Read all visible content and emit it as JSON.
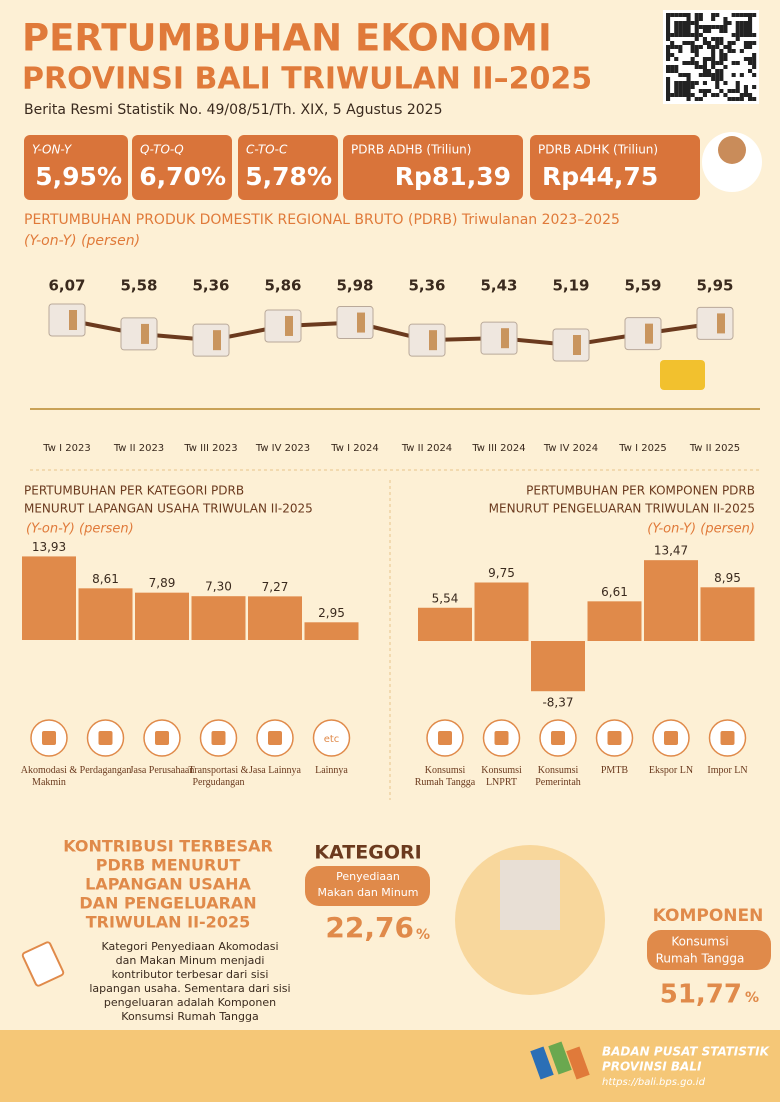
{
  "header": {
    "title_line1": "PERTUMBUHAN EKONOMI",
    "title_line2": "PROVINSI BALI TRIWULAN II–2025",
    "subtitle": "Berita Resmi Statistik No. 49/08/51/Th. XIX, 5 Agustus 2025"
  },
  "indicators": [
    {
      "label": "Y-ON-Y",
      "value": "5,95%"
    },
    {
      "label": "Q-TO-Q",
      "value": "6,70%"
    },
    {
      "label": "C-TO-C",
      "value": "5,78%"
    },
    {
      "label": "PDRB ADHB (Triliun)",
      "value": "Rp81,39"
    },
    {
      "label": "PDRB ADHK (Triliun)",
      "value": "Rp44,75"
    }
  ],
  "chart_data": [
    {
      "type": "line",
      "title": "PERTUMBUHAN PRODUK DOMESTIK REGIONAL BRUTO (PDRB) Triwulanan 2023–2025",
      "subtitle": "(Y-on-Y) (persen)",
      "categories": [
        "Tw I 2023",
        "Tw II 2023",
        "Tw III 2023",
        "Tw IV 2023",
        "Tw I 2024",
        "Tw II 2024",
        "Tw III 2024",
        "Tw IV 2024",
        "Tw I 2025",
        "Tw II 2025"
      ],
      "values": [
        6.07,
        5.58,
        5.36,
        5.86,
        5.98,
        5.36,
        5.43,
        5.19,
        5.59,
        5.95
      ],
      "value_labels": [
        "6,07",
        "5,58",
        "5,36",
        "5,86",
        "5,98",
        "5,36",
        "5,43",
        "5,19",
        "5,59",
        "5,95"
      ],
      "color": "#6b3a1e"
    },
    {
      "type": "bar",
      "title": "PERTUMBUHAN PER KATEGORI PDRB",
      "title_line2": "MENURUT LAPANGAN USAHA TRIWULAN II-2025",
      "subtitle": "(Y-on-Y) (persen)",
      "categories": [
        "Akomodasi & Makmin",
        "Perdagangan",
        "Jasa Perusahaan",
        "Transportasi & Pergudangan",
        "Jasa Lainnya",
        "Lainnya"
      ],
      "values": [
        13.93,
        8.61,
        7.89,
        7.3,
        7.27,
        2.95
      ],
      "value_labels": [
        "13,93",
        "8,61",
        "7,89",
        "7,30",
        "7,27",
        "2,95"
      ],
      "color": "#e08a4a"
    },
    {
      "type": "bar",
      "title": "PERTUMBUHAN PER KOMPONEN PDRB",
      "title_line2": "MENURUT PENGELUARAN TRIWULAN II-2025",
      "subtitle": "(Y-on-Y) (persen)",
      "categories": [
        "Konsumsi Rumah Tangga",
        "Konsumsi LNPRT",
        "Konsumsi Pemerintah",
        "PMTB",
        "Ekspor LN",
        "Impor LN"
      ],
      "values": [
        5.54,
        9.75,
        -8.37,
        6.61,
        13.47,
        8.95
      ],
      "value_labels": [
        "5,54",
        "9,75",
        "-8,37",
        "6,61",
        "13,47",
        "8,95"
      ],
      "color": "#e08a4a"
    }
  ],
  "icon_text": "etc",
  "contribution": {
    "title": [
      "KONTRIBUSI TERBESAR",
      "PDRB MENURUT",
      "LAPANGAN USAHA",
      "DAN PENGELUARAN",
      "TRIWULAN II-2025"
    ],
    "paragraph": [
      "Kategori Penyediaan Akomodasi",
      "dan Makan Minum menjadi",
      "kontributor terbesar dari sisi",
      "lapangan usaha. Sementara dari sisi",
      "pengeluaran adalah Komponen",
      "Konsumsi Rumah Tangga"
    ],
    "kategori": {
      "heading": "KATEGORI",
      "name": [
        "Penyediaan",
        "Makan dan Minum"
      ],
      "value": "22,76",
      "unit": "%"
    },
    "komponen": {
      "heading": "KOMPONEN",
      "name": [
        "Konsumsi",
        "Rumah Tangga"
      ],
      "value": "51,77",
      "unit": "%"
    }
  },
  "footer": {
    "org": "BADAN PUSAT STATISTIK",
    "region": "PROVINSI BALI",
    "url": "https://bali.bps.go.id"
  }
}
